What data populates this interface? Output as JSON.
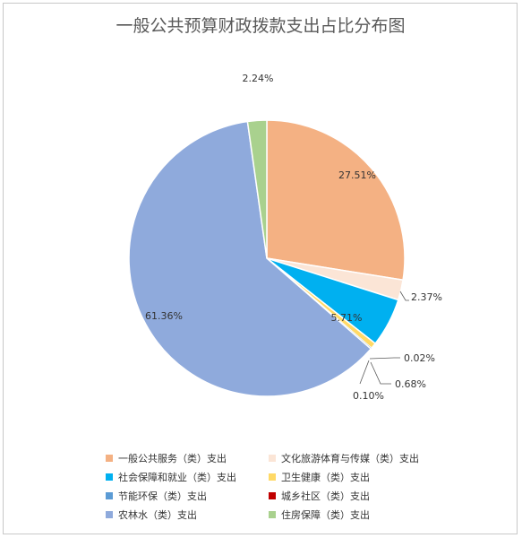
{
  "chart_data": {
    "type": "pie",
    "title": "一般公共预算财政拨款支出占比分布图",
    "series": [
      {
        "name": "一般公共服务（类）支出",
        "value": 27.51,
        "label": "27.51%",
        "color": "#f4b183"
      },
      {
        "name": "文化旅游体育与传媒（类）支出",
        "value": 2.37,
        "label": "2.37%",
        "color": "#fbe5d6"
      },
      {
        "name": "社会保障和就业（类）支出",
        "value": 5.71,
        "label": "5.71%",
        "color": "#00b0f0"
      },
      {
        "name": "卫生健康（类）支出",
        "value": 0.68,
        "label": "0.68%",
        "color": "#ffd966"
      },
      {
        "name": "节能环保（类）支出",
        "value": 0.1,
        "label": "0.10%",
        "color": "#5b9bd5"
      },
      {
        "name": "城乡社区（类）支出",
        "value": 0.02,
        "label": "0.02%",
        "color": "#c00000"
      },
      {
        "name": "农林水（类）支出",
        "value": 61.36,
        "label": "61.36%",
        "color": "#8faadc"
      },
      {
        "name": "住房保障（类）支出",
        "value": 2.24,
        "label": "2.24%",
        "color": "#a9d18e"
      }
    ],
    "legend_position": "bottom",
    "legend_order": [
      0,
      1,
      2,
      3,
      4,
      5,
      6,
      7
    ]
  }
}
